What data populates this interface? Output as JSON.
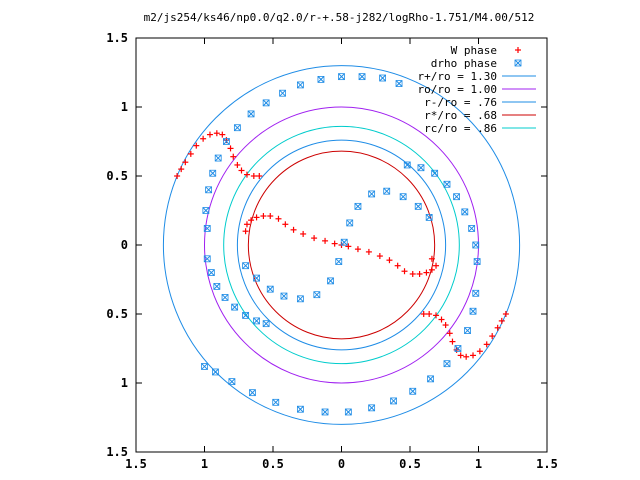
{
  "chart_data": {
    "type": "scatter",
    "title": "m2/js254/ks46/np0.0/q2.0/r-+.58-j282/logRho-1.751/M4.00/512",
    "xlim": [
      -1.5,
      1.5
    ],
    "ylim": [
      -1.5,
      1.5
    ],
    "grid": false,
    "legend_position": "top-right",
    "x_ticks": [
      -1.5,
      -1,
      -0.5,
      0,
      0.5,
      1,
      1.5
    ],
    "x_tick_labels": [
      "1.5",
      "1",
      "0.5",
      "0",
      "0.5",
      "1",
      "1.5"
    ],
    "y_ticks": [
      1.5,
      1,
      0.5,
      0,
      -0.5,
      -1,
      -1.5
    ],
    "y_tick_labels": [
      "1.5",
      "1",
      "0.5",
      "0",
      "0.5",
      "1",
      "1.5"
    ],
    "point_series": [
      {
        "name": "W phase",
        "marker": "plus",
        "color": "#ff0000",
        "points": [
          [
            -1.2,
            0.5
          ],
          [
            -1.17,
            0.55
          ],
          [
            -1.14,
            0.6
          ],
          [
            -1.1,
            0.66
          ],
          [
            -1.06,
            0.72
          ],
          [
            -1.01,
            0.77
          ],
          [
            -0.96,
            0.8
          ],
          [
            -0.91,
            0.81
          ],
          [
            -0.87,
            0.8
          ],
          [
            -0.84,
            0.76
          ],
          [
            -0.81,
            0.7
          ],
          [
            -0.79,
            0.64
          ],
          [
            -0.76,
            0.58
          ],
          [
            -0.73,
            0.54
          ],
          [
            -0.69,
            0.51
          ],
          [
            -0.64,
            0.5
          ],
          [
            -0.6,
            0.5
          ],
          [
            -0.7,
            0.1
          ],
          [
            -0.69,
            0.15
          ],
          [
            -0.66,
            0.18
          ],
          [
            -0.62,
            0.2
          ],
          [
            -0.57,
            0.21
          ],
          [
            -0.52,
            0.21
          ],
          [
            -0.46,
            0.19
          ],
          [
            -0.41,
            0.15
          ],
          [
            -0.35,
            0.11
          ],
          [
            -0.28,
            0.08
          ],
          [
            -0.2,
            0.05
          ],
          [
            -0.12,
            0.03
          ],
          [
            -0.05,
            0.01
          ],
          [
            0.0,
            0.0
          ],
          [
            0.05,
            -0.01
          ],
          [
            0.12,
            -0.03
          ],
          [
            0.2,
            -0.05
          ],
          [
            0.28,
            -0.08
          ],
          [
            0.35,
            -0.11
          ],
          [
            0.41,
            -0.15
          ],
          [
            0.46,
            -0.19
          ],
          [
            0.52,
            -0.21
          ],
          [
            0.57,
            -0.21
          ],
          [
            0.62,
            -0.2
          ],
          [
            0.66,
            -0.18
          ],
          [
            0.69,
            -0.15
          ],
          [
            0.66,
            -0.1
          ],
          [
            0.6,
            -0.5
          ],
          [
            0.64,
            -0.5
          ],
          [
            0.69,
            -0.51
          ],
          [
            0.73,
            -0.54
          ],
          [
            0.76,
            -0.58
          ],
          [
            0.79,
            -0.64
          ],
          [
            0.81,
            -0.7
          ],
          [
            0.84,
            -0.76
          ],
          [
            0.87,
            -0.8
          ],
          [
            0.91,
            -0.81
          ],
          [
            0.96,
            -0.8
          ],
          [
            1.01,
            -0.77
          ],
          [
            1.06,
            -0.72
          ],
          [
            1.1,
            -0.66
          ],
          [
            1.14,
            -0.6
          ],
          [
            1.17,
            -0.55
          ],
          [
            1.2,
            -0.5
          ]
        ]
      },
      {
        "name": "drho phase",
        "marker": "cross-square",
        "color": "#1e8ce6",
        "points": [
          [
            -0.98,
            0.12
          ],
          [
            -0.99,
            0.25
          ],
          [
            -0.97,
            0.4
          ],
          [
            -0.94,
            0.52
          ],
          [
            -0.9,
            0.63
          ],
          [
            -0.84,
            0.75
          ],
          [
            -0.76,
            0.85
          ],
          [
            -0.66,
            0.95
          ],
          [
            -0.55,
            1.03
          ],
          [
            -0.43,
            1.1
          ],
          [
            -0.3,
            1.16
          ],
          [
            -0.15,
            1.2
          ],
          [
            0.0,
            1.22
          ],
          [
            0.15,
            1.22
          ],
          [
            0.3,
            1.21
          ],
          [
            0.42,
            1.17
          ],
          [
            -0.98,
            -0.1
          ],
          [
            -0.95,
            -0.2
          ],
          [
            -0.91,
            -0.3
          ],
          [
            -0.85,
            -0.38
          ],
          [
            -0.78,
            -0.45
          ],
          [
            -0.7,
            -0.51
          ],
          [
            -0.62,
            -0.55
          ],
          [
            -0.55,
            -0.57
          ],
          [
            -0.7,
            -0.15
          ],
          [
            -0.62,
            -0.24
          ],
          [
            -0.52,
            -0.32
          ],
          [
            -0.42,
            -0.37
          ],
          [
            -0.3,
            -0.39
          ],
          [
            -0.18,
            -0.36
          ],
          [
            -0.08,
            -0.26
          ],
          [
            -0.02,
            -0.12
          ],
          [
            0.02,
            0.02
          ],
          [
            0.06,
            0.16
          ],
          [
            0.12,
            0.28
          ],
          [
            0.22,
            0.37
          ],
          [
            0.33,
            0.39
          ],
          [
            0.45,
            0.35
          ],
          [
            0.56,
            0.28
          ],
          [
            0.64,
            0.2
          ],
          [
            0.48,
            0.58
          ],
          [
            0.58,
            0.56
          ],
          [
            0.68,
            0.52
          ],
          [
            0.77,
            0.44
          ],
          [
            0.84,
            0.35
          ],
          [
            0.9,
            0.24
          ],
          [
            0.95,
            0.12
          ],
          [
            0.98,
            0.0
          ],
          [
            0.99,
            -0.12
          ],
          [
            -1.0,
            -0.88
          ],
          [
            -0.92,
            -0.92
          ],
          [
            -0.8,
            -0.99
          ],
          [
            -0.65,
            -1.07
          ],
          [
            -0.48,
            -1.14
          ],
          [
            -0.3,
            -1.19
          ],
          [
            -0.12,
            -1.21
          ],
          [
            0.05,
            -1.21
          ],
          [
            0.22,
            -1.18
          ],
          [
            0.38,
            -1.13
          ],
          [
            0.52,
            -1.06
          ],
          [
            0.65,
            -0.97
          ],
          [
            0.77,
            -0.86
          ],
          [
            0.85,
            -0.75
          ],
          [
            0.92,
            -0.62
          ],
          [
            0.96,
            -0.48
          ],
          [
            0.98,
            -0.35
          ]
        ]
      }
    ],
    "circle_series": [
      {
        "name": "r+/ro = 1.30",
        "radius": 1.3,
        "color": "#1e8ce6"
      },
      {
        "name": "ro/ro = 1.00",
        "radius": 1.0,
        "color": "#a020f0"
      },
      {
        "name": "r-/ro = .76",
        "radius": 0.76,
        "color": "#1e8ce6"
      },
      {
        "name": "r*/ro = .68",
        "radius": 0.68,
        "color": "#cc0000"
      },
      {
        "name": "rc/ro = .86",
        "radius": 0.86,
        "color": "#00cccc"
      }
    ]
  }
}
